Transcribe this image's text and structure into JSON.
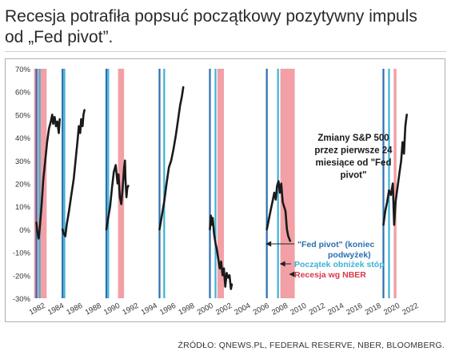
{
  "header": {
    "title_line1": "Recesja potrafiła popsuć początkowy pozytywny impuls",
    "title_line2": "od „Fed pivot”."
  },
  "source": "ŹRÓDŁO: QNEWS.PL, FEDERAL RESERVE, NBER, BLOOMBERG.",
  "colors": {
    "line": "#1a1a1a",
    "fed_pivot": "#2a6fb0",
    "rate_cut": "#3bb3d4",
    "recession": "#f2a0a6",
    "annot_text": "#1a1a1a",
    "fed_label": "#2a6fb0",
    "cut_label": "#3bb3d4",
    "rec_label": "#d93a4a"
  },
  "chart_data": {
    "type": "line",
    "title": "",
    "xlabel": "",
    "ylabel": "",
    "xlim": [
      1981.5,
      2023.5
    ],
    "ylim": [
      -30,
      70
    ],
    "grid": false,
    "y_ticks": [
      70,
      60,
      50,
      40,
      30,
      20,
      10,
      0,
      -10,
      -20,
      -30
    ],
    "y_tick_labels": [
      "70%",
      "60%",
      "50%",
      "40%",
      "30%",
      "20%",
      "10%",
      "0%",
      "-10%",
      "-20%",
      "-30%"
    ],
    "x_ticks": [
      1982,
      1984,
      1986,
      1988,
      1990,
      1992,
      1994,
      1996,
      1998,
      2000,
      2002,
      2004,
      2006,
      2008,
      2010,
      2012,
      2014,
      2016,
      2018,
      2020,
      2022
    ],
    "x_tick_labels": [
      "1982",
      "1984",
      "1986",
      "1988",
      "1990",
      "1992",
      "1994",
      "1996",
      "1998",
      "2000",
      "2002",
      "2004",
      "2006",
      "2008",
      "2010",
      "2012",
      "2014",
      "2016",
      "2018",
      "2020",
      "2022"
    ],
    "annotation_title": [
      "Zmiany S&P 500",
      "przez pierwsze 24",
      "miesiące od \"Fed",
      "pivot\""
    ],
    "legend": [
      {
        "label": "\"Fed pivot\" (koniec",
        "label2": "podwyżek)",
        "kind": "fed_pivot",
        "arrow_x": 2006.2
      },
      {
        "label": "Początek obniżek stóp",
        "kind": "rate_cut",
        "arrow_x": 2007.7
      },
      {
        "label": "Recesja wg NBER",
        "kind": "recession",
        "arrow_x": 2008.7
      }
    ],
    "recessions": [
      [
        1981.55,
        1982.9
      ],
      [
        1990.55,
        1991.2
      ],
      [
        2001.2,
        2001.9
      ],
      [
        2007.95,
        2009.5
      ],
      [
        2020.1,
        2020.4
      ]
    ],
    "fed_pivot_lines": [
      1981.8,
      1984.6,
      1989.3,
      1995.0,
      2000.4,
      2006.5,
      2019.0
    ],
    "rate_cut_lines": [
      1982.15,
      1984.8,
      1989.5,
      1995.5,
      2001.0,
      2007.7,
      2019.6
    ],
    "series": [
      {
        "points": [
          [
            1981.8,
            3
          ],
          [
            1981.9,
            -1
          ],
          [
            1982.05,
            -4
          ],
          [
            1982.15,
            0
          ],
          [
            1982.35,
            10
          ],
          [
            1982.55,
            22
          ],
          [
            1982.75,
            30
          ],
          [
            1982.95,
            38
          ],
          [
            1983.15,
            44
          ],
          [
            1983.35,
            47
          ],
          [
            1983.5,
            50
          ],
          [
            1983.6,
            46
          ],
          [
            1983.75,
            49
          ],
          [
            1983.9,
            45
          ],
          [
            1984.05,
            47
          ],
          [
            1984.2,
            42
          ],
          [
            1984.3,
            48
          ]
        ]
      },
      {
        "points": [
          [
            1984.6,
            0
          ],
          [
            1984.75,
            -2
          ],
          [
            1984.9,
            -3
          ],
          [
            1985.05,
            2
          ],
          [
            1985.3,
            8
          ],
          [
            1985.55,
            15
          ],
          [
            1985.8,
            22
          ],
          [
            1986.0,
            30
          ],
          [
            1986.2,
            38
          ],
          [
            1986.35,
            45
          ],
          [
            1986.5,
            42
          ],
          [
            1986.6,
            48
          ],
          [
            1986.75,
            45
          ],
          [
            1986.85,
            50
          ],
          [
            1986.95,
            52
          ]
        ]
      },
      {
        "points": [
          [
            1989.3,
            0
          ],
          [
            1989.5,
            5
          ],
          [
            1989.7,
            10
          ],
          [
            1989.9,
            18
          ],
          [
            1990.1,
            25
          ],
          [
            1990.3,
            28
          ],
          [
            1990.5,
            20
          ],
          [
            1990.6,
            24
          ],
          [
            1990.75,
            14
          ],
          [
            1990.9,
            11
          ],
          [
            1991.05,
            18
          ],
          [
            1991.2,
            27
          ],
          [
            1991.3,
            30
          ],
          [
            1991.35,
            22
          ],
          [
            1991.45,
            14
          ],
          [
            1991.55,
            18
          ],
          [
            1991.65,
            19
          ]
        ]
      },
      {
        "points": [
          [
            1995.0,
            0
          ],
          [
            1995.25,
            6
          ],
          [
            1995.5,
            12
          ],
          [
            1995.75,
            20
          ],
          [
            1996.0,
            27
          ],
          [
            1996.25,
            30
          ],
          [
            1996.5,
            35
          ],
          [
            1996.75,
            41
          ],
          [
            1997.0,
            48
          ],
          [
            1997.2,
            54
          ],
          [
            1997.4,
            58
          ],
          [
            1997.55,
            62
          ]
        ]
      },
      {
        "points": [
          [
            2000.4,
            0
          ],
          [
            2000.5,
            6
          ],
          [
            2000.6,
            2
          ],
          [
            2000.7,
            5
          ],
          [
            2000.85,
            -2
          ],
          [
            2001.0,
            -6
          ],
          [
            2001.15,
            -9
          ],
          [
            2001.3,
            -13
          ],
          [
            2001.45,
            -17
          ],
          [
            2001.6,
            -14
          ],
          [
            2001.75,
            -20
          ],
          [
            2001.9,
            -17
          ],
          [
            2002.05,
            -25
          ],
          [
            2002.2,
            -19
          ],
          [
            2002.35,
            -21
          ],
          [
            2002.5,
            -20
          ],
          [
            2002.65,
            -26
          ],
          [
            2002.75,
            -24
          ]
        ]
      },
      {
        "points": [
          [
            2006.5,
            0
          ],
          [
            2006.7,
            4
          ],
          [
            2006.9,
            8
          ],
          [
            2007.1,
            12
          ],
          [
            2007.3,
            16
          ],
          [
            2007.45,
            13
          ],
          [
            2007.6,
            19
          ],
          [
            2007.75,
            21
          ],
          [
            2007.9,
            16
          ],
          [
            2008.05,
            20
          ],
          [
            2008.2,
            12
          ],
          [
            2008.35,
            10
          ],
          [
            2008.5,
            8
          ],
          [
            2008.65,
            0
          ],
          [
            2008.8,
            -3
          ],
          [
            2009.0,
            -5
          ]
        ]
      },
      {
        "points": [
          [
            2019.0,
            2
          ],
          [
            2019.2,
            8
          ],
          [
            2019.4,
            12
          ],
          [
            2019.6,
            17
          ],
          [
            2019.8,
            15
          ],
          [
            2020.0,
            20
          ],
          [
            2020.15,
            2
          ],
          [
            2020.3,
            12
          ],
          [
            2020.5,
            18
          ],
          [
            2020.7,
            24
          ],
          [
            2020.9,
            30
          ],
          [
            2021.05,
            38
          ],
          [
            2021.2,
            33
          ],
          [
            2021.35,
            45
          ],
          [
            2021.5,
            50
          ]
        ]
      }
    ]
  }
}
